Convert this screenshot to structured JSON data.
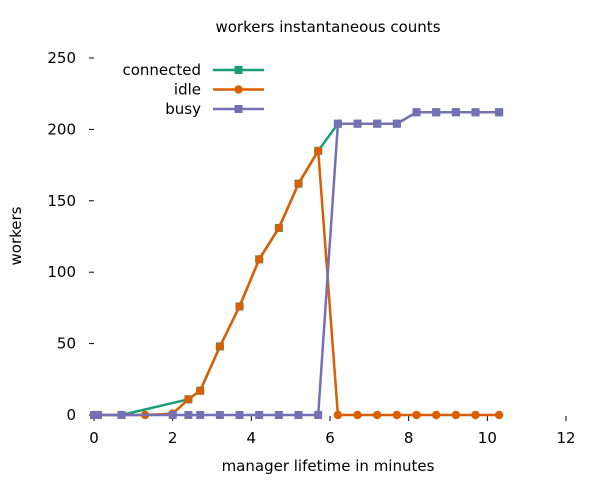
{
  "chart_data": {
    "type": "line",
    "title": "workers instantaneous counts",
    "xlabel": "manager lifetime in minutes",
    "ylabel": "workers",
    "xlim": [
      0,
      12
    ],
    "ylim": [
      0,
      250
    ],
    "xticks": [
      0,
      2,
      4,
      6,
      8,
      10,
      12
    ],
    "yticks": [
      0,
      50,
      100,
      150,
      200,
      250
    ],
    "grid": false,
    "legend_position": "top-left",
    "series": [
      {
        "name": "connected",
        "color": "#1b9e77",
        "marker": "square",
        "x": [
          0,
          0.1,
          0.7,
          2.4,
          2.7,
          3.2,
          3.7,
          4.2,
          4.7,
          5.2,
          5.7,
          6.2,
          6.7,
          7.2,
          7.7,
          8.2,
          8.7,
          9.2,
          9.7,
          10.3
        ],
        "y": [
          0,
          0,
          0,
          11,
          17,
          48,
          76,
          109,
          131,
          162,
          185,
          204,
          204,
          204,
          204,
          212,
          212,
          212,
          212,
          212
        ]
      },
      {
        "name": "idle",
        "color": "#d95f02",
        "marker": "circle",
        "x": [
          0,
          0.1,
          0.7,
          1.3,
          2.0,
          2.4,
          2.7,
          3.2,
          3.7,
          4.2,
          4.7,
          5.2,
          5.7,
          6.2,
          6.7,
          7.2,
          7.7,
          8.2,
          8.7,
          9.2,
          9.7,
          10.3
        ],
        "y": [
          0,
          0,
          0,
          0,
          1,
          11,
          17,
          48,
          76,
          109,
          131,
          162,
          185,
          0,
          0,
          0,
          0,
          0,
          0,
          0,
          0,
          0
        ]
      },
      {
        "name": "busy",
        "color": "#7570b3",
        "marker": "square",
        "x": [
          0,
          0.1,
          0.7,
          2.0,
          2.4,
          2.7,
          3.2,
          3.7,
          4.2,
          4.7,
          5.2,
          5.7,
          6.2,
          6.7,
          7.2,
          7.7,
          8.2,
          8.7,
          9.2,
          9.7,
          10.3
        ],
        "y": [
          0,
          0,
          0,
          0,
          0,
          0,
          0,
          0,
          0,
          0,
          0,
          0,
          204,
          204,
          204,
          204,
          212,
          212,
          212,
          212,
          212
        ]
      }
    ]
  }
}
